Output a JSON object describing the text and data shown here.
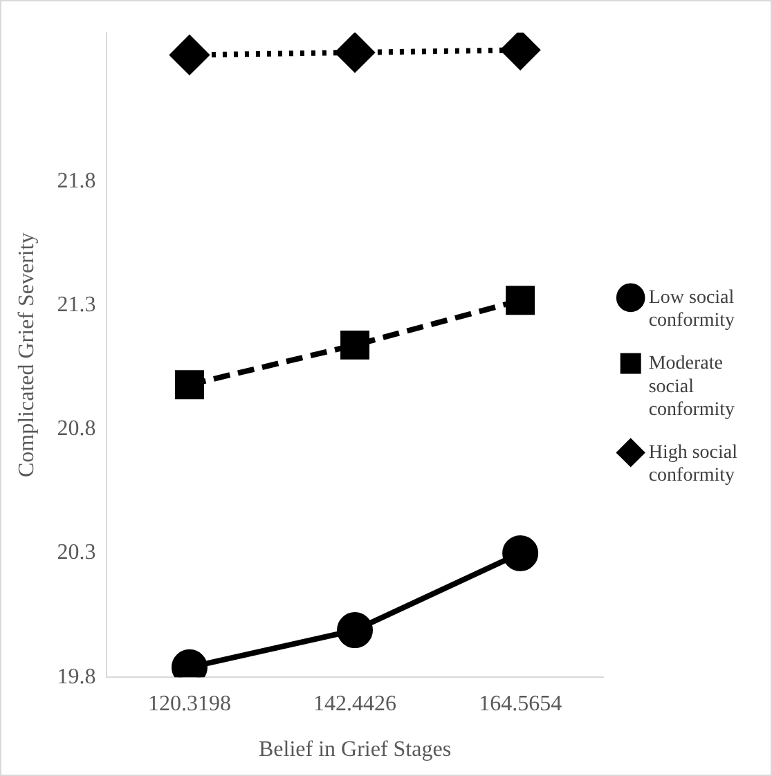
{
  "chart_data": {
    "type": "line",
    "xlabel": "Belief in Grief Stages",
    "ylabel": "Complicated Grief Severity",
    "categories": [
      "120.3198",
      "142.4426",
      "164.5654"
    ],
    "ylim": [
      19.8,
      22.4
    ],
    "yticks": [
      19.8,
      20.3,
      20.8,
      21.3,
      21.8
    ],
    "grid": false,
    "legend": "right",
    "series": [
      {
        "name": "Low social conformity",
        "color": "#000000",
        "marker": "circle",
        "line_style": "solid",
        "values": [
          19.84,
          19.99,
          20.3
        ]
      },
      {
        "name": "Moderate social conformity",
        "color": "#000000",
        "marker": "square",
        "line_style": "dashed",
        "values": [
          20.98,
          21.14,
          21.32
        ]
      },
      {
        "name": "High social conformity",
        "color": "#000000",
        "marker": "diamond",
        "line_style": "dotted",
        "values": [
          22.31,
          22.32,
          22.33
        ]
      }
    ]
  }
}
